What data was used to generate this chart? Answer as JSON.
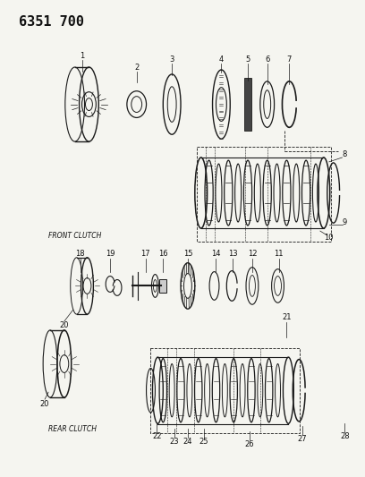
{
  "title": "6351 700",
  "title_fontsize": 11,
  "title_fontweight": "bold",
  "background_color": "#f5f5f0",
  "label_front_clutch": "FRONT CLUTCH",
  "label_rear_clutch": "REAR CLUTCH",
  "line_color": "#1a1a1a",
  "text_color": "#111111",
  "dark_gray": "#444444",
  "mid_gray": "#888888",
  "light_gray": "#cccccc"
}
